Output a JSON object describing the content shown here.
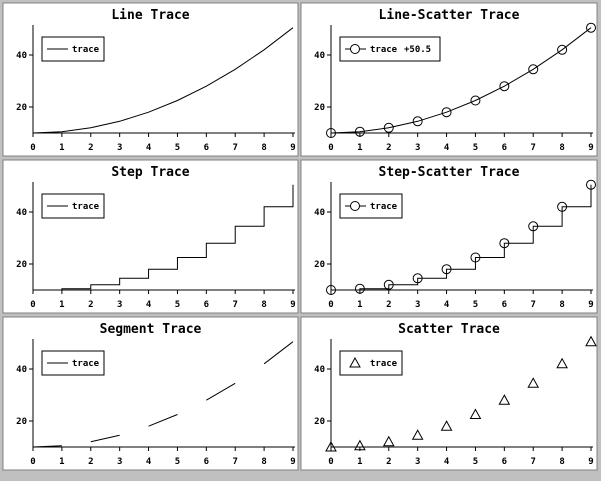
{
  "colors": {
    "frame_background": "#c0c0c0",
    "panel_background": "#ffffff",
    "ink": "#000000"
  },
  "chart_data": [
    {
      "type": "line",
      "title": "Line Trace",
      "xlim": [
        0,
        9
      ],
      "ylim": [
        10,
        50
      ],
      "xticks": [
        "0",
        "1",
        "2",
        "3",
        "4",
        "5",
        "6",
        "7",
        "8",
        "9"
      ],
      "yticks": [
        "20",
        "40"
      ],
      "legend": {
        "position": "top-left",
        "entries": [
          "trace"
        ]
      },
      "series": [
        {
          "name": "trace",
          "style": "line",
          "x": [
            0,
            1,
            2,
            3,
            4,
            5,
            6,
            7,
            8,
            9
          ],
          "y": [
            10,
            10.5,
            12,
            14.5,
            18,
            22.5,
            28,
            34.5,
            42,
            50.5
          ]
        }
      ]
    },
    {
      "type": "line",
      "title": "Line-Scatter Trace",
      "xlim": [
        0,
        9
      ],
      "ylim": [
        10,
        50
      ],
      "xticks": [
        "0",
        "1",
        "2",
        "3",
        "4",
        "5",
        "6",
        "7",
        "8",
        "9"
      ],
      "yticks": [
        "20",
        "40"
      ],
      "legend": {
        "position": "top-left",
        "entries": [
          "trace"
        ],
        "extra_text": "+50.5"
      },
      "series": [
        {
          "name": "trace",
          "style": "line-circle",
          "x": [
            0,
            1,
            2,
            3,
            4,
            5,
            6,
            7,
            8,
            9
          ],
          "y": [
            10,
            10.5,
            12,
            14.5,
            18,
            22.5,
            28,
            34.5,
            42,
            50.5
          ]
        }
      ]
    },
    {
      "type": "line",
      "title": "Step Trace",
      "xlim": [
        0,
        9
      ],
      "ylim": [
        10,
        50
      ],
      "xticks": [
        "0",
        "1",
        "2",
        "3",
        "4",
        "5",
        "6",
        "7",
        "8",
        "9"
      ],
      "yticks": [
        "20",
        "40"
      ],
      "legend": {
        "position": "top-left",
        "entries": [
          "trace"
        ]
      },
      "series": [
        {
          "name": "trace",
          "style": "step",
          "x": [
            0,
            1,
            2,
            3,
            4,
            5,
            6,
            7,
            8,
            9
          ],
          "y": [
            10,
            10.5,
            12,
            14.5,
            18,
            22.5,
            28,
            34.5,
            42,
            50.5
          ]
        }
      ]
    },
    {
      "type": "line",
      "title": "Step-Scatter Trace",
      "xlim": [
        0,
        9
      ],
      "ylim": [
        10,
        50
      ],
      "xticks": [
        "0",
        "1",
        "2",
        "3",
        "4",
        "5",
        "6",
        "7",
        "8",
        "9"
      ],
      "yticks": [
        "20",
        "40"
      ],
      "legend": {
        "position": "top-left",
        "entries": [
          "trace"
        ]
      },
      "series": [
        {
          "name": "trace",
          "style": "step-circle",
          "x": [
            0,
            1,
            2,
            3,
            4,
            5,
            6,
            7,
            8,
            9
          ],
          "y": [
            10,
            10.5,
            12,
            14.5,
            18,
            22.5,
            28,
            34.5,
            42,
            50.5
          ]
        }
      ]
    },
    {
      "type": "line",
      "title": "Segment Trace",
      "xlim": [
        0,
        9
      ],
      "ylim": [
        10,
        50
      ],
      "xticks": [
        "0",
        "1",
        "2",
        "3",
        "4",
        "5",
        "6",
        "7",
        "8",
        "9"
      ],
      "yticks": [
        "20",
        "40"
      ],
      "legend": {
        "position": "top-left",
        "entries": [
          "trace"
        ]
      },
      "series": [
        {
          "name": "trace",
          "style": "segment",
          "x": [
            0,
            1,
            2,
            3,
            4,
            5,
            6,
            7,
            8,
            9
          ],
          "y": [
            10,
            10.5,
            12,
            14.5,
            18,
            22.5,
            28,
            34.5,
            42,
            50.5
          ]
        }
      ]
    },
    {
      "type": "scatter",
      "title": "Scatter Trace",
      "xlim": [
        0,
        9
      ],
      "ylim": [
        10,
        50
      ],
      "xticks": [
        "0",
        "1",
        "2",
        "3",
        "4",
        "5",
        "6",
        "7",
        "8",
        "9"
      ],
      "yticks": [
        "20",
        "40"
      ],
      "legend": {
        "position": "top-left",
        "entries": [
          "trace"
        ]
      },
      "series": [
        {
          "name": "trace",
          "style": "triangle",
          "x": [
            0,
            1,
            2,
            3,
            4,
            5,
            6,
            7,
            8,
            9
          ],
          "y": [
            10,
            10.5,
            12,
            14.5,
            18,
            22.5,
            28,
            34.5,
            42,
            50.5
          ]
        }
      ]
    }
  ]
}
